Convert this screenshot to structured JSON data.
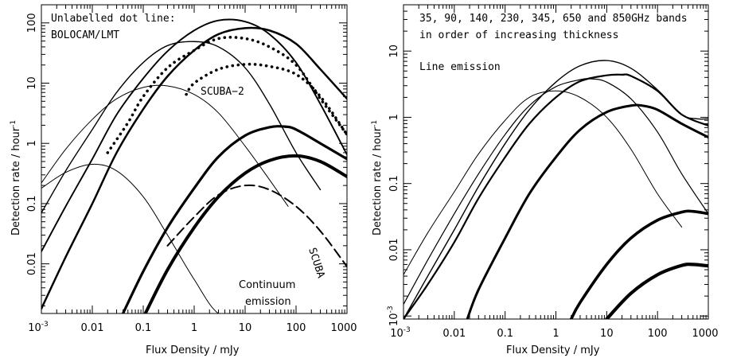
{
  "chart_data": [
    {
      "type": "line",
      "panel": "left",
      "xlabel": "Flux Density / mJy",
      "ylabel": "Detection rate / hour",
      "ylabel_superscript": "-1",
      "xscale": "log",
      "yscale": "log",
      "xlim": [
        0.001,
        1000
      ],
      "ylim": [
        0.0015,
        200
      ],
      "xticklabels": [
        {
          "v": 0.001,
          "base": "10",
          "exp": "-3"
        },
        {
          "v": 0.01,
          "text": "0.01"
        },
        {
          "v": 0.1,
          "text": "0.1"
        },
        {
          "v": 1,
          "text": "1"
        },
        {
          "v": 10,
          "text": "10"
        },
        {
          "v": 100,
          "text": "100"
        },
        {
          "v": 1000,
          "text": "1000"
        }
      ],
      "yticklabels": [
        {
          "v": 0.01,
          "text": "0.01"
        },
        {
          "v": 0.1,
          "text": "0.1"
        },
        {
          "v": 1,
          "text": "1"
        },
        {
          "v": 10,
          "text": "10"
        },
        {
          "v": 100,
          "text": "100"
        }
      ],
      "annotations": {
        "top_line1": "Unlabelled dot line:",
        "top_line2": "BOLOCAM/LMT",
        "scuba2": "SCUBA−2",
        "scuba": "SCUBA",
        "bottom_line1": "Continuum",
        "bottom_line2": "emission"
      },
      "series": [
        {
          "style": "solid",
          "thickness": 1,
          "x": [
            0.001,
            0.003,
            0.01,
            0.03,
            0.1,
            0.3,
            1,
            3,
            10,
            30,
            100
          ],
          "y": [
            0.18,
            0.33,
            0.45,
            0.35,
            0.13,
            0.03,
            0.0055,
            0.0015,
            0.0015,
            0.0015,
            0.0015
          ]
        },
        {
          "style": "solid",
          "thickness": 1,
          "x": [
            0.001,
            0.003,
            0.01,
            0.03,
            0.1,
            0.3,
            1,
            3,
            10,
            30,
            70
          ],
          "y": [
            0.22,
            0.8,
            2.5,
            5.5,
            8.5,
            9.0,
            6.5,
            3.2,
            0.9,
            0.25,
            0.09
          ]
        },
        {
          "style": "solid",
          "thickness": 1.4,
          "x": [
            0.001,
            0.003,
            0.01,
            0.03,
            0.1,
            0.3,
            1,
            3,
            10,
            30,
            100,
            300
          ],
          "y": [
            0.07,
            0.35,
            1.7,
            7.0,
            22,
            42,
            49,
            40,
            18,
            4.5,
            0.7,
            0.17
          ]
        },
        {
          "style": "solid",
          "thickness": 1.9,
          "x": [
            0.001,
            0.003,
            0.01,
            0.03,
            0.1,
            0.3,
            1,
            3,
            10,
            30,
            100,
            300,
            1000
          ],
          "y": [
            0.016,
            0.09,
            0.55,
            3.0,
            12,
            34,
            75,
            110,
            105,
            65,
            22,
            4.5,
            0.65
          ]
        },
        {
          "style": "solid",
          "thickness": 2.5,
          "x": [
            0.001,
            0.003,
            0.01,
            0.03,
            0.1,
            0.3,
            1,
            3,
            10,
            30,
            100,
            300,
            1000
          ],
          "y": [
            0.0018,
            0.013,
            0.1,
            0.7,
            3.7,
            13,
            35,
            65,
            82,
            75,
            45,
            17,
            5.5
          ]
        },
        {
          "style": "solid",
          "thickness": 3.2,
          "x": [
            0.04,
            0.1,
            0.3,
            1,
            3,
            10,
            30,
            60,
            100,
            300,
            1000
          ],
          "y": [
            0.0015,
            0.0075,
            0.04,
            0.18,
            0.6,
            1.35,
            1.85,
            1.9,
            1.7,
            1.0,
            0.55
          ]
        },
        {
          "style": "solid",
          "thickness": 4,
          "x": [
            0.11,
            0.3,
            1,
            3,
            10,
            30,
            100,
            300,
            1000
          ],
          "y": [
            0.0015,
            0.008,
            0.04,
            0.13,
            0.32,
            0.52,
            0.62,
            0.5,
            0.28
          ]
        },
        {
          "style": "dashed",
          "thickness": 2,
          "x": [
            0.3,
            1,
            3,
            10,
            30,
            100,
            300,
            1000
          ],
          "y": [
            0.02,
            0.06,
            0.14,
            0.2,
            0.17,
            0.09,
            0.035,
            0.009
          ]
        },
        {
          "style": "dotted",
          "thickness": 3.6,
          "x": [
            0.02,
            0.05,
            0.1,
            0.3,
            1,
            3,
            10,
            30,
            100,
            300,
            1000
          ],
          "y": [
            0.7,
            2.2,
            6,
            18,
            35,
            55,
            55,
            40,
            20,
            5.5,
            1.4
          ]
        },
        {
          "style": "dotted",
          "thickness": 3.6,
          "x": [
            0.7,
            1,
            3,
            10,
            30,
            100,
            300,
            1000
          ],
          "y": [
            6.5,
            10,
            17,
            20.5,
            19,
            14,
            6,
            1.4
          ]
        }
      ]
    },
    {
      "type": "line",
      "panel": "right",
      "xlabel": "Flux Density / mJy",
      "ylabel": "Detection rate / hour",
      "ylabel_superscript": "-1",
      "xscale": "log",
      "yscale": "log",
      "xlim": [
        0.001,
        1000
      ],
      "ylim": [
        0.0009,
        50
      ],
      "xticklabels": [
        {
          "v": 0.001,
          "base": "10",
          "exp": "-3"
        },
        {
          "v": 0.01,
          "text": "0.01"
        },
        {
          "v": 0.1,
          "text": "0.1"
        },
        {
          "v": 1,
          "text": "1"
        },
        {
          "v": 10,
          "text": "10"
        },
        {
          "v": 100,
          "text": "100"
        },
        {
          "v": 1000,
          "text": "1000"
        }
      ],
      "yticklabels": [
        {
          "v": 0.001,
          "base": "10",
          "exp": "-3"
        },
        {
          "v": 0.01,
          "text": "0.01"
        },
        {
          "v": 0.1,
          "text": "0.1"
        },
        {
          "v": 1,
          "text": "1"
        },
        {
          "v": 10,
          "text": "10"
        }
      ],
      "annotations": {
        "top_line1": "35, 90, 140, 230, 345, 650 and 850GHz bands",
        "top_line2": "in order of increasing thickness",
        "line_label": "Line emission"
      },
      "series": [
        {
          "style": "solid",
          "thickness": 1,
          "x": [
            0.001,
            0.003,
            0.01,
            0.03,
            0.1,
            0.3,
            1,
            3,
            10,
            30,
            100,
            300
          ],
          "y": [
            0.0042,
            0.018,
            0.075,
            0.28,
            0.9,
            2.0,
            2.5,
            2.0,
            1.0,
            0.33,
            0.07,
            0.022
          ]
        },
        {
          "style": "solid",
          "thickness": 1.2,
          "x": [
            0.001,
            0.003,
            0.01,
            0.03,
            0.1,
            0.3,
            1,
            3,
            5,
            10,
            30,
            100,
            300,
            1000
          ],
          "y": [
            0.0015,
            0.007,
            0.035,
            0.14,
            0.55,
            1.5,
            2.9,
            3.7,
            3.8,
            3.4,
            1.9,
            0.6,
            0.14,
            0.035
          ]
        },
        {
          "style": "solid",
          "thickness": 1.4,
          "x": [
            0.001,
            0.003,
            0.01,
            0.03,
            0.1,
            0.3,
            1,
            3,
            10,
            30,
            100,
            300,
            600,
            1000
          ],
          "y": [
            0.0009,
            0.004,
            0.02,
            0.09,
            0.4,
            1.3,
            3.4,
            6.0,
            7.2,
            5.5,
            2.6,
            1.1,
            0.95,
            0.95
          ]
        },
        {
          "style": "solid",
          "thickness": 2.2,
          "x": [
            0.001,
            0.003,
            0.01,
            0.03,
            0.1,
            0.3,
            1,
            3,
            10,
            20,
            30,
            100,
            300,
            1000
          ],
          "y": [
            0.0009,
            0.003,
            0.013,
            0.06,
            0.25,
            0.8,
            2.0,
            3.5,
            4.3,
            4.4,
            4.2,
            2.5,
            1.1,
            0.75
          ]
        },
        {
          "style": "solid",
          "thickness": 3.0,
          "x": [
            0.018,
            0.03,
            0.1,
            0.3,
            1,
            3,
            10,
            30,
            50,
            100,
            300,
            1000
          ],
          "y": [
            0.0009,
            0.0025,
            0.015,
            0.07,
            0.25,
            0.65,
            1.2,
            1.5,
            1.5,
            1.3,
            0.8,
            0.5
          ]
        },
        {
          "style": "solid",
          "thickness": 3.6,
          "x": [
            2.0,
            3,
            10,
            30,
            100,
            300,
            500,
            1000
          ],
          "y": [
            0.0009,
            0.0016,
            0.006,
            0.015,
            0.028,
            0.037,
            0.038,
            0.035
          ]
        },
        {
          "style": "solid",
          "thickness": 4.2,
          "x": [
            10,
            30,
            100,
            300,
            500,
            1000
          ],
          "y": [
            0.0009,
            0.0022,
            0.0042,
            0.0058,
            0.006,
            0.0057
          ]
        }
      ]
    }
  ]
}
